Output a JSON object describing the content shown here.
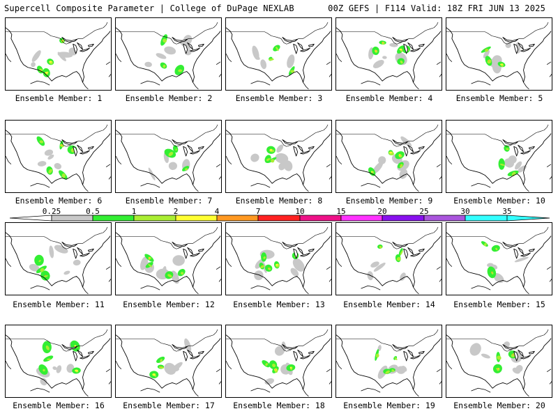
{
  "header": {
    "title": "Supercell Composite Parameter | College of DuPage NEXLAB",
    "run_info": "00Z GEFS | F114 Valid: 18Z FRI JUN 13 2025"
  },
  "member_label_prefix": "Ensemble Member: ",
  "members": [
    1,
    2,
    3,
    4,
    5,
    6,
    7,
    8,
    9,
    10,
    11,
    12,
    13,
    14,
    15,
    16,
    17,
    18,
    19,
    20
  ],
  "colorbar": {
    "levels": [
      "0.25",
      "0.5",
      "1",
      "2",
      "4",
      "7",
      "10",
      "15",
      "20",
      "25",
      "30",
      "35"
    ],
    "colors": [
      "#ffffff",
      "#c8c8c8",
      "#33ee33",
      "#aaee33",
      "#ffff33",
      "#ff9922",
      "#ff2222",
      "#ee1188",
      "#ff33ff",
      "#8811ee",
      "#aa55dd",
      "#33ffff"
    ]
  }
}
